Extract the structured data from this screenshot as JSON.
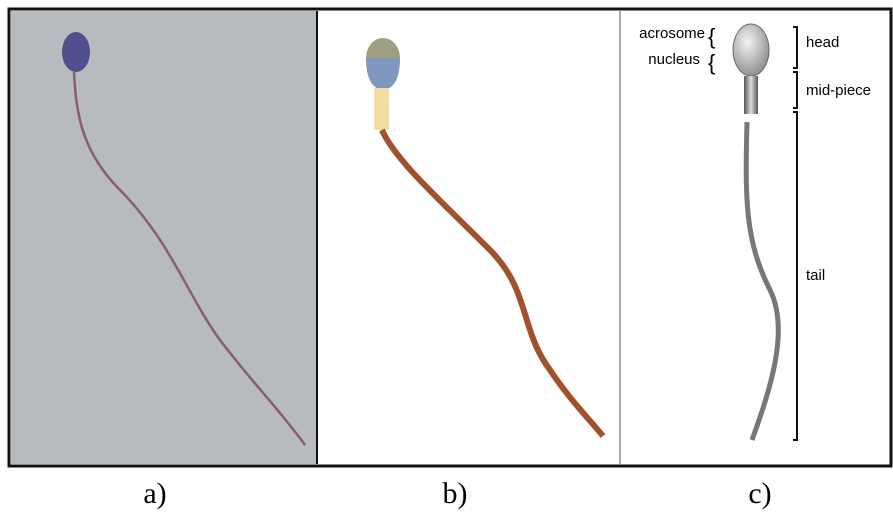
{
  "panels": [
    {
      "caption": "a)"
    },
    {
      "caption": "b)"
    },
    {
      "caption": "c)"
    }
  ],
  "annotations": {
    "left": [
      "acrosome",
      "nucleus"
    ],
    "right": [
      "head",
      "mid-piece",
      "tail"
    ]
  }
}
